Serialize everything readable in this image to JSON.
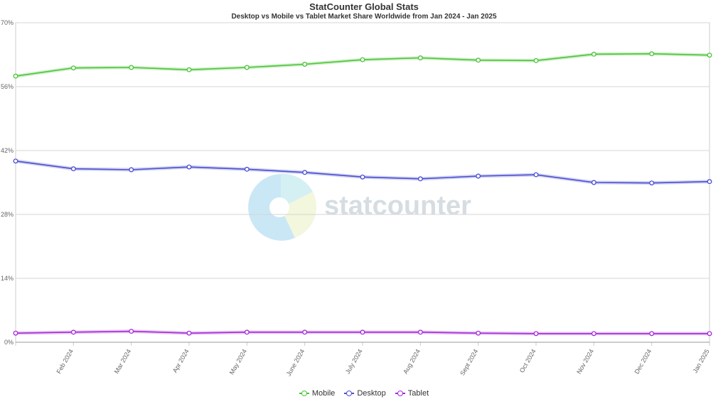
{
  "chart_data": {
    "type": "line",
    "title": "StatCounter Global Stats",
    "subtitle": "Desktop vs Mobile vs Tablet Market Share Worldwide from Jan 2024 - Jan 2025",
    "categories": [
      "Jan 2024",
      "Feb 2024",
      "Mar 2024",
      "Apr 2024",
      "May 2024",
      "June 2024",
      "July 2024",
      "Aug 2024",
      "Sept 2024",
      "Oct 2024",
      "Nov 2024",
      "Dec 2024",
      "Jan 2025"
    ],
    "x_tick_labels": [
      "Feb 2024",
      "Mar 2024",
      "Apr 2024",
      "May 2024",
      "June 2024",
      "July 2024",
      "Aug 2024",
      "Sept 2024",
      "Oct 2024",
      "Nov 2024",
      "Dec 2024",
      "Jan 2025"
    ],
    "y_ticks": [
      0,
      14,
      28,
      42,
      56,
      70
    ],
    "y_tick_labels": [
      "0%",
      "14%",
      "28%",
      "42%",
      "56%",
      "70%"
    ],
    "ylim": [
      0,
      70
    ],
    "grid": true,
    "legend_position": "bottom-center",
    "series": [
      {
        "name": "Mobile",
        "color": "#4cc339",
        "values": [
          58.3,
          60.1,
          60.2,
          59.7,
          60.2,
          60.9,
          61.9,
          62.3,
          61.8,
          61.7,
          63.1,
          63.2,
          62.9
        ]
      },
      {
        "name": "Desktop",
        "color": "#4a4fd1",
        "values": [
          39.7,
          38.0,
          37.8,
          38.4,
          37.9,
          37.2,
          36.2,
          35.8,
          36.4,
          36.7,
          35.0,
          34.9,
          35.2
        ]
      },
      {
        "name": "Tablet",
        "color": "#a52ad8",
        "values": [
          2.0,
          2.2,
          2.4,
          2.0,
          2.2,
          2.2,
          2.2,
          2.2,
          2.0,
          1.9,
          1.9,
          1.9,
          1.9
        ]
      }
    ],
    "watermark": "statcounter"
  }
}
